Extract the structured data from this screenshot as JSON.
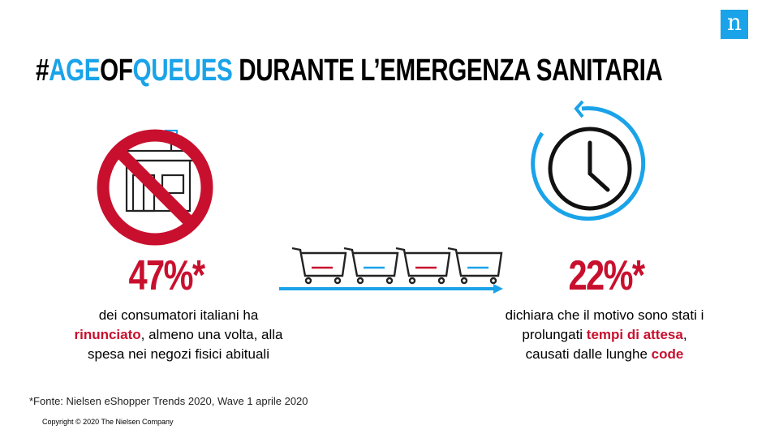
{
  "logo": {
    "letter": "n",
    "icon": "nielsen-logo",
    "color": "#1aa3e8"
  },
  "title": {
    "hash": "#",
    "age": "AGE",
    "of": "OF",
    "queues": "QUEUES",
    "rest": " DURANTE L’EMERGENZA SANITARIA"
  },
  "left": {
    "icon": "store-prohibited-icon",
    "stat": "47%*",
    "desc_line1": "dei consumatori italiani ha",
    "desc_emph": "rinunciato",
    "desc_line2_rest": ", almeno una volta, alla",
    "desc_line3": "spesa nei negozi fisici abituali"
  },
  "middle": {
    "icon": "shopping-cart-icon",
    "arrow_icon": "arrow-right-icon"
  },
  "right": {
    "icon": "clock-refresh-icon",
    "stat": "22%*",
    "desc_line1": "dichiara che il motivo sono stati i",
    "desc_line2_pre": "prolungati ",
    "desc_emph1": "tempi di attesa",
    "desc_line2_post": ",",
    "desc_line3_pre": "causati dalle lunghe ",
    "desc_emph2": "code"
  },
  "footer": {
    "source": "*Fonte: Nielsen eShopper Trends 2020, Wave 1 aprile 2020",
    "copyright": "Copyright © 2020 The Nielsen Company"
  },
  "colors": {
    "red": "#c8102e",
    "blue": "#1aa3e8"
  }
}
